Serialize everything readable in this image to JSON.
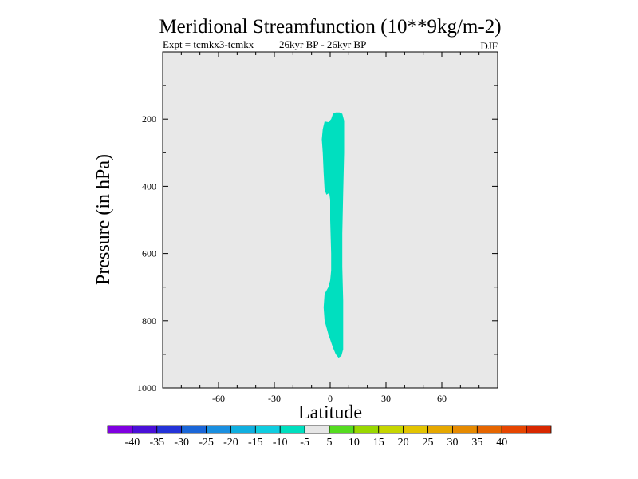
{
  "chart_data": {
    "type": "heatmap",
    "title": "Meridional Streamfunction (10**9kg/m-2)",
    "subtitle_left": "Expt = tcmkx3-tcmkx",
    "subtitle_mid": "26kyr BP - 26kyr BP",
    "subtitle_right": "DJF",
    "xlabel": "Latitude",
    "ylabel": "Pressure (in hPa)",
    "xlim": [
      -90,
      90
    ],
    "ylim": [
      1000,
      0
    ],
    "x_ticks": [
      -60,
      -30,
      0,
      30,
      60
    ],
    "y_ticks": [
      200,
      400,
      600,
      800,
      1000
    ],
    "background_color": "#e8e8e8",
    "filled_regions": [
      {
        "range": "-5 to 5",
        "color": "#00dfbf",
        "outline": [
          [
            -3,
            207
          ],
          [
            -1,
            209
          ],
          [
            0.5,
            200
          ],
          [
            1.5,
            184
          ],
          [
            3,
            180
          ],
          [
            5,
            180
          ],
          [
            6.5,
            184
          ],
          [
            7.5,
            205
          ],
          [
            7.5,
            300
          ],
          [
            7,
            420
          ],
          [
            6.5,
            540
          ],
          [
            6.5,
            640
          ],
          [
            7,
            740
          ],
          [
            7,
            885
          ],
          [
            6,
            905
          ],
          [
            4.5,
            910
          ],
          [
            3,
            900
          ],
          [
            1.5,
            880
          ],
          [
            -1,
            840
          ],
          [
            -3,
            800
          ],
          [
            -3.5,
            760
          ],
          [
            -3,
            720
          ],
          [
            -1,
            700
          ],
          [
            0,
            680
          ],
          [
            0.5,
            650
          ],
          [
            0.5,
            600
          ],
          [
            0,
            500
          ],
          [
            0,
            440
          ],
          [
            -0.5,
            420
          ],
          [
            -2,
            425
          ],
          [
            -3,
            410
          ],
          [
            -3.5,
            360
          ],
          [
            -4,
            300
          ],
          [
            -4.5,
            260
          ],
          [
            -4,
            230
          ]
        ]
      }
    ],
    "colorbar": {
      "colors": [
        "#7f00e0",
        "#4a10d8",
        "#2433d8",
        "#1a66d8",
        "#1a8fe0",
        "#10afe0",
        "#10cde0",
        "#00dfbf",
        "#e6e6e6",
        "#55dc20",
        "#99d800",
        "#c6d600",
        "#e3c400",
        "#e6a800",
        "#e68a00",
        "#e66600",
        "#e64500",
        "#d82800"
      ],
      "labels": [
        "-40",
        "-35",
        "-30",
        "-25",
        "-20",
        "-15",
        "-10",
        "-5",
        "5",
        "10",
        "15",
        "20",
        "25",
        "30",
        "35",
        "40"
      ]
    }
  }
}
